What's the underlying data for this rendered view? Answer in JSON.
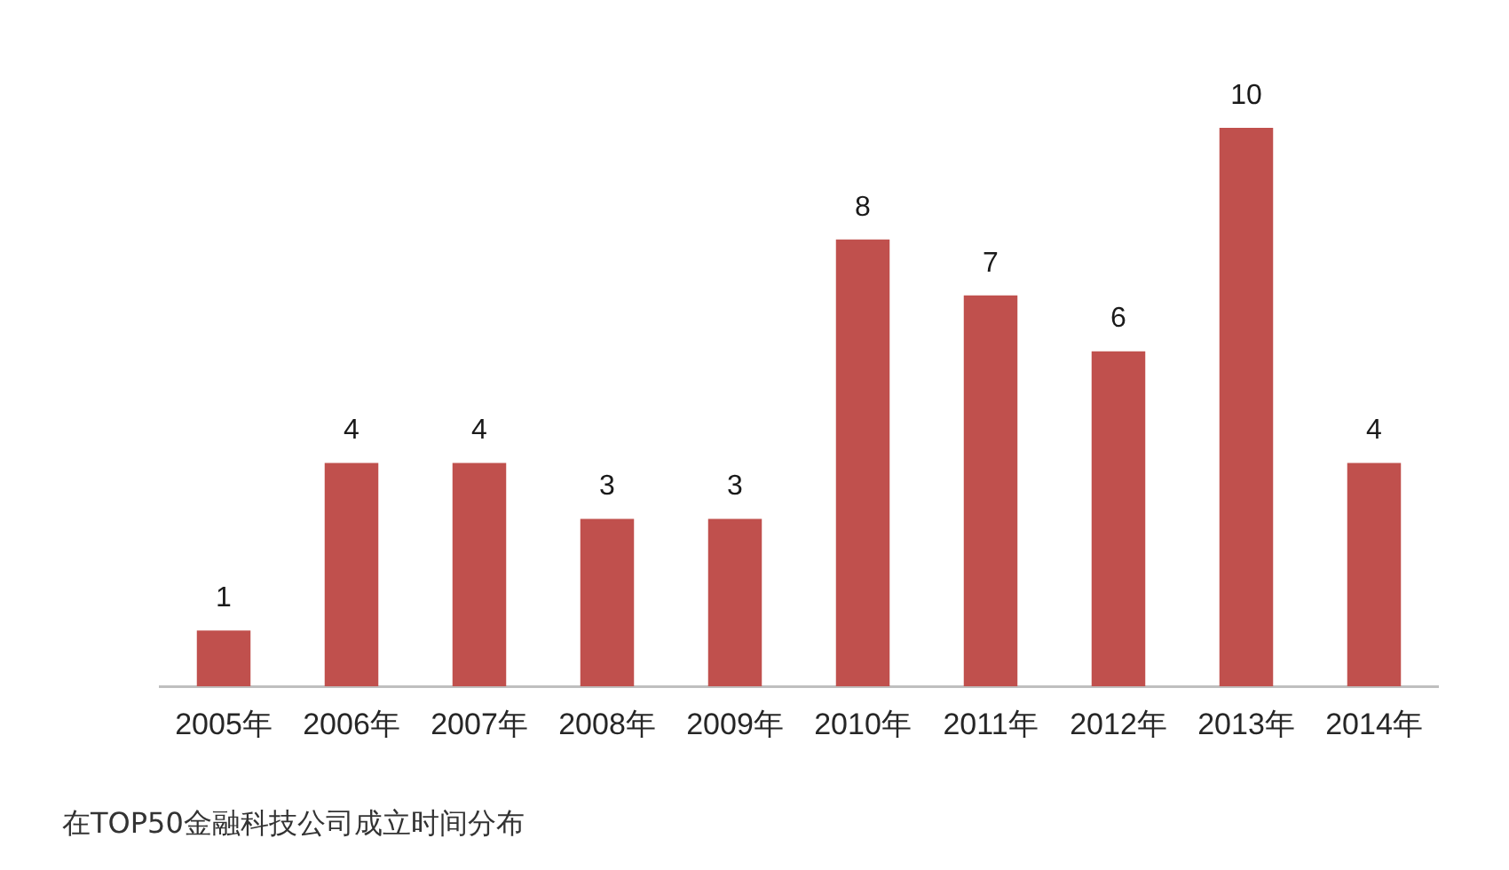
{
  "chart_data": {
    "type": "bar",
    "categories": [
      "2005年",
      "2006年",
      "2007年",
      "2008年",
      "2009年",
      "2010年",
      "2011年",
      "2012年",
      "2013年",
      "2014年"
    ],
    "values": [
      1,
      4,
      4,
      3,
      3,
      8,
      7,
      6,
      10,
      4
    ],
    "color": "#c0504d",
    "data_labels": true,
    "annotations": [
      "在TOP50金融科技公司成立时间分布"
    ]
  }
}
